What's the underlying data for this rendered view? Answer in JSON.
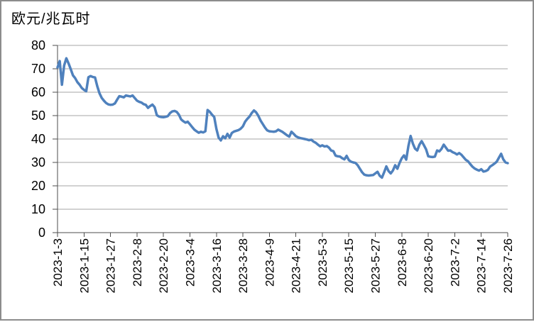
{
  "chart_data": {
    "type": "line",
    "title": "欧元/兆瓦时",
    "xlabel": "",
    "ylabel": "欧元/兆瓦时",
    "x_start": "2023-1-3",
    "x_end": "2023-7-26",
    "x_tick_labels": [
      "2023-1-3",
      "2023-1-15",
      "2023-1-27",
      "2023-2-8",
      "2023-2-20",
      "2023-3-4",
      "2023-3-16",
      "2023-3-28",
      "2023-4-9",
      "2023-4-21",
      "2023-5-3",
      "2023-5-15",
      "2023-5-27",
      "2023-6-8",
      "2023-6-20",
      "2023-7-2",
      "2023-7-14",
      "2023-7-26"
    ],
    "points_per_tick": 12,
    "y_ticks": [
      0,
      10,
      20,
      30,
      40,
      50,
      60,
      70,
      80
    ],
    "ylim": [
      0,
      80
    ],
    "grid": "horizontal",
    "legend": "none",
    "series": [
      {
        "name": "欧元/兆瓦时",
        "color": "#4F81BD",
        "values": [
          70.6,
          73.3,
          63.2,
          71.4,
          74.5,
          72.3,
          69.8,
          67.2,
          66.0,
          64.3,
          63.2,
          61.8,
          61.0,
          60.4,
          66.4,
          66.9,
          66.5,
          66.3,
          62.6,
          59.6,
          57.6,
          56.4,
          55.4,
          54.8,
          54.6,
          54.7,
          55.2,
          56.8,
          58.3,
          58.1,
          57.8,
          58.6,
          58.4,
          58.2,
          58.6,
          57.5,
          56.4,
          55.9,
          55.6,
          54.9,
          54.6,
          53.3,
          54.1,
          54.7,
          53.6,
          50.2,
          49.6,
          49.4,
          49.3,
          49.5,
          49.8,
          51.1,
          51.8,
          52.0,
          51.6,
          50.4,
          48.4,
          47.6,
          47.0,
          47.4,
          46.3,
          45.1,
          44.0,
          43.3,
          42.7,
          43.1,
          42.8,
          43.3,
          52.4,
          51.6,
          50.4,
          49.4,
          44.3,
          40.6,
          39.4,
          41.2,
          40.3,
          42.2,
          40.6,
          42.6,
          43.2,
          43.5,
          43.8,
          44.4,
          45.4,
          47.4,
          48.6,
          49.6,
          51.1,
          52.2,
          51.4,
          49.9,
          47.9,
          46.4,
          44.9,
          43.7,
          43.3,
          43.2,
          43.1,
          43.3,
          44.0,
          43.5,
          43.0,
          42.3,
          41.6,
          41.0,
          43.1,
          42.2,
          41.2,
          40.7,
          40.4,
          40.2,
          40.0,
          39.8,
          39.5,
          39.7,
          38.9,
          38.4,
          37.6,
          36.9,
          37.3,
          36.8,
          37.0,
          36.3,
          35.1,
          34.8,
          32.9,
          32.6,
          32.5,
          31.8,
          31.3,
          32.8,
          31.0,
          30.3,
          30.0,
          29.8,
          28.8,
          27.3,
          25.8,
          24.8,
          24.5,
          24.4,
          24.5,
          24.6,
          25.3,
          26.0,
          24.3,
          23.5,
          25.8,
          28.3,
          26.3,
          25.3,
          26.6,
          28.8,
          27.3,
          29.8,
          31.8,
          33.0,
          31.2,
          37.0,
          41.3,
          38.1,
          35.9,
          35.1,
          37.6,
          39.1,
          37.4,
          35.6,
          32.6,
          32.4,
          32.3,
          32.5,
          35.1,
          34.7,
          35.8,
          37.6,
          36.3,
          35.0,
          35.1,
          34.4,
          34.0,
          33.4,
          34.0,
          33.3,
          32.2,
          31.1,
          30.5,
          29.3,
          28.2,
          27.4,
          26.9,
          26.5,
          27.1,
          26.1,
          26.3,
          26.8,
          28.2,
          28.8,
          29.5,
          30.3,
          32.0,
          33.7,
          31.3,
          30.0,
          29.7
        ]
      }
    ]
  },
  "colors": {
    "line": "#4F81BD",
    "gridline": "#A6A6A6",
    "axis": "#4D4D4D",
    "text": "#000000",
    "background": "#FFFFFF",
    "frame_border": "#8C8C8C"
  }
}
